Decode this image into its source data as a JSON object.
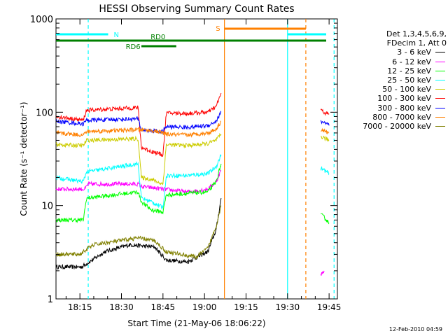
{
  "chart_data": {
    "type": "line",
    "title": "HESSI Observing Summary Count Rates",
    "xlabel": "Start Time (21-May-06 18:06:22)",
    "ylabel": "Count Rate (s⁻¹ detector⁻¹)",
    "yscale": "log",
    "grid": false,
    "legend_placement": "right",
    "xlim": [
      18.106,
      19.8
    ],
    "ylim": [
      1,
      1000
    ],
    "x_ticks": [
      {
        "value": 18.25,
        "label": "18:15"
      },
      {
        "value": 18.5,
        "label": "18:30"
      },
      {
        "value": 18.75,
        "label": "18:45"
      },
      {
        "value": 19.0,
        "label": "19:00"
      },
      {
        "value": 19.25,
        "label": "19:15"
      },
      {
        "value": 19.5,
        "label": "19:30"
      },
      {
        "value": 19.75,
        "label": "19:45"
      }
    ],
    "y_ticks": [
      {
        "value": 1,
        "label": "1"
      },
      {
        "value": 10,
        "label": "10"
      },
      {
        "value": 100,
        "label": "100"
      },
      {
        "value": 1000,
        "label": "1000"
      }
    ],
    "legend_header": [
      "Det 1,3,4,5,6,9,",
      "FDecim 1, Att 0"
    ],
    "series": [
      {
        "name": "3 - 6 keV",
        "color": "#000000",
        "points": [
          [
            18.106,
            2.2
          ],
          [
            18.26,
            2.2
          ],
          [
            18.4,
            3.2
          ],
          [
            18.55,
            3.8
          ],
          [
            18.7,
            3.6
          ],
          [
            18.77,
            2.6
          ],
          [
            18.9,
            2.5
          ],
          [
            19.02,
            3.2
          ],
          [
            19.07,
            5.5
          ],
          [
            19.1,
            12
          ]
        ]
      },
      {
        "name": "6 - 12 keV",
        "color": "#ff00ff",
        "points": [
          [
            18.106,
            15
          ],
          [
            18.28,
            15
          ],
          [
            18.3,
            17
          ],
          [
            18.6,
            17
          ],
          [
            18.62,
            16
          ],
          [
            18.9,
            14
          ],
          [
            19.02,
            15
          ],
          [
            19.07,
            18
          ],
          [
            19.1,
            24
          ]
        ],
        "points2": [
          [
            19.7,
            1.8
          ],
          [
            19.72,
            2.0
          ]
        ]
      },
      {
        "name": "12 - 25 keV",
        "color": "#00ff00",
        "points": [
          [
            18.106,
            7
          ],
          [
            18.27,
            7
          ],
          [
            18.29,
            12
          ],
          [
            18.6,
            14
          ],
          [
            18.62,
            11
          ],
          [
            18.68,
            9
          ],
          [
            18.75,
            8.5
          ],
          [
            18.77,
            13
          ],
          [
            18.9,
            13.5
          ],
          [
            19.02,
            14
          ],
          [
            19.07,
            18
          ],
          [
            19.1,
            28
          ]
        ],
        "points2": [
          [
            19.7,
            8
          ],
          [
            19.72,
            7.5
          ],
          [
            19.75,
            6.5
          ]
        ]
      },
      {
        "name": "25 - 50 keV",
        "color": "#00ffff",
        "points": [
          [
            18.106,
            20
          ],
          [
            18.27,
            18
          ],
          [
            18.29,
            23
          ],
          [
            18.6,
            28
          ],
          [
            18.62,
            12
          ],
          [
            18.68,
            11
          ],
          [
            18.75,
            9.5
          ],
          [
            18.77,
            21
          ],
          [
            18.9,
            21
          ],
          [
            19.02,
            22
          ],
          [
            19.07,
            26
          ],
          [
            19.1,
            35
          ]
        ],
        "points2": [
          [
            19.7,
            25
          ],
          [
            19.72,
            24
          ],
          [
            19.75,
            22
          ]
        ]
      },
      {
        "name": "50 - 100 keV",
        "color": "#cccc00",
        "points": [
          [
            18.106,
            45
          ],
          [
            18.27,
            44
          ],
          [
            18.29,
            50
          ],
          [
            18.6,
            52
          ],
          [
            18.62,
            20
          ],
          [
            18.68,
            19
          ],
          [
            18.75,
            17
          ],
          [
            18.77,
            45
          ],
          [
            18.9,
            44
          ],
          [
            19.02,
            46
          ],
          [
            19.07,
            50
          ],
          [
            19.1,
            58
          ]
        ],
        "points2": [
          [
            19.7,
            55
          ],
          [
            19.72,
            53
          ],
          [
            19.75,
            50
          ]
        ]
      },
      {
        "name": "100 - 300 keV",
        "color": "#ff0000",
        "points": [
          [
            18.106,
            90
          ],
          [
            18.27,
            82
          ],
          [
            18.29,
            105
          ],
          [
            18.6,
            112
          ],
          [
            18.62,
            42
          ],
          [
            18.68,
            38
          ],
          [
            18.75,
            35
          ],
          [
            18.77,
            98
          ],
          [
            18.9,
            97
          ],
          [
            19.02,
            100
          ],
          [
            19.07,
            115
          ],
          [
            19.1,
            160
          ]
        ],
        "points2": [
          [
            19.7,
            105
          ],
          [
            19.72,
            100
          ],
          [
            19.75,
            95
          ]
        ]
      },
      {
        "name": "300 - 800 keV",
        "color": "#0000ff",
        "points": [
          [
            18.106,
            80
          ],
          [
            18.27,
            75
          ],
          [
            18.29,
            82
          ],
          [
            18.6,
            85
          ],
          [
            18.62,
            65
          ],
          [
            18.68,
            63
          ],
          [
            18.75,
            62
          ],
          [
            18.77,
            70
          ],
          [
            18.9,
            69
          ],
          [
            19.02,
            72
          ],
          [
            19.07,
            80
          ],
          [
            19.1,
            100
          ]
        ],
        "points2": [
          [
            19.7,
            80
          ],
          [
            19.72,
            78
          ],
          [
            19.75,
            72
          ]
        ]
      },
      {
        "name": "800 - 7000 keV",
        "color": "#ff8000",
        "points": [
          [
            18.106,
            60
          ],
          [
            18.27,
            57
          ],
          [
            18.29,
            62
          ],
          [
            18.6,
            65
          ],
          [
            18.62,
            65
          ],
          [
            18.7,
            63
          ],
          [
            18.75,
            60
          ],
          [
            18.77,
            58
          ],
          [
            18.9,
            57
          ],
          [
            19.02,
            60
          ],
          [
            19.07,
            66
          ],
          [
            19.1,
            80
          ]
        ],
        "points2": [
          [
            19.7,
            65
          ],
          [
            19.72,
            63
          ],
          [
            19.75,
            60
          ]
        ]
      },
      {
        "name": "7000 - 20000 keV",
        "color": "#808000",
        "points": [
          [
            18.106,
            3
          ],
          [
            18.25,
            3
          ],
          [
            18.33,
            3.8
          ],
          [
            18.6,
            4.5
          ],
          [
            18.7,
            4.2
          ],
          [
            18.77,
            3.2
          ],
          [
            18.95,
            2.8
          ],
          [
            19.02,
            3.5
          ],
          [
            19.07,
            6
          ],
          [
            19.1,
            10
          ]
        ]
      }
    ],
    "flag_bars": [
      {
        "label": "N",
        "color": "#00ffff",
        "y_level": 1,
        "segments": [
          [
            18.106,
            18.42
          ],
          [
            19.5,
            19.8
          ]
        ]
      },
      {
        "label": "S",
        "color": "#ff8000",
        "y_level": 2,
        "segments": [
          [
            19.12,
            19.61
          ]
        ]
      },
      {
        "label": "RD0",
        "color": "#008000",
        "y_level": 0,
        "segments": [
          [
            18.106,
            19.8
          ]
        ]
      },
      {
        "label": "RD6",
        "color": "#008000",
        "y_level": -1,
        "segments": [
          [
            18.62,
            18.83
          ]
        ]
      }
    ],
    "vertical_lines": [
      {
        "x": 18.3,
        "color": "#00ffff",
        "dash": true
      },
      {
        "x": 19.12,
        "color": "#ff8000",
        "dash": false
      },
      {
        "x": 19.5,
        "color": "#00ffff",
        "dash": false
      },
      {
        "x": 19.61,
        "color": "#ff8000",
        "dash": true
      },
      {
        "x": 19.78,
        "color": "#00ffff",
        "dash": true
      }
    ]
  },
  "footer": {
    "timestamp": "12-Feb-2010 04:59"
  }
}
